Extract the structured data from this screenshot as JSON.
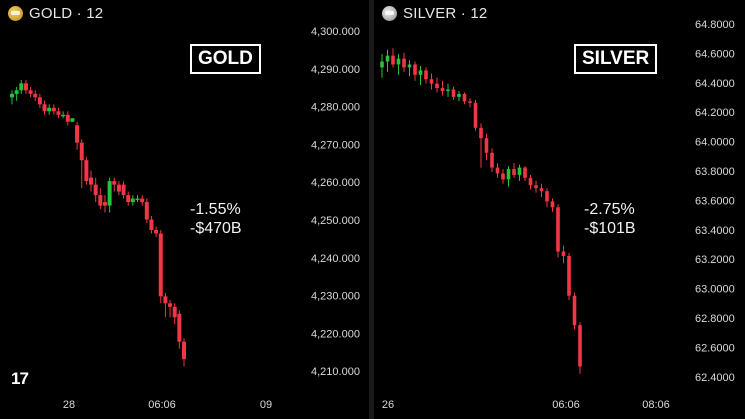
{
  "gold": {
    "header": "GOLD · 12",
    "icon": "gold-coin-icon",
    "box_label": "GOLD",
    "change_pct": "-1.55%",
    "change_cap": "-$470B"
  },
  "silver": {
    "header": "SILVER · 12",
    "icon": "silver-coin-icon",
    "box_label": "SILVER",
    "change_pct": "-2.75%",
    "change_cap": "-$101B"
  },
  "colors": {
    "up": "#26c23a",
    "down": "#f23645",
    "background": "#000000",
    "text": "#ffffff"
  },
  "chart_data": [
    {
      "type": "candlestick",
      "title": "GOLD · 12",
      "ylim": [
        4207,
        4307
      ],
      "y_ticks": [
        "4,300.000",
        "4,290.000",
        "4,280.000",
        "4,270.000",
        "4,260.000",
        "4,250.000",
        "4,240.000",
        "4,230.000",
        "4,220.000",
        "4,210.000"
      ],
      "x_ticks": [
        "28",
        "06:06",
        "09"
      ],
      "grid": false,
      "candles": [
        {
          "o": 4289,
          "h": 4291,
          "l": 4287,
          "c": 4290
        },
        {
          "o": 4290,
          "h": 4292,
          "l": 4288,
          "c": 4291
        },
        {
          "o": 4291,
          "h": 4294,
          "l": 4290,
          "c": 4293
        },
        {
          "o": 4293,
          "h": 4294,
          "l": 4290,
          "c": 4291
        },
        {
          "o": 4291,
          "h": 4292,
          "l": 4289,
          "c": 4290
        },
        {
          "o": 4290,
          "h": 4291,
          "l": 4288,
          "c": 4289
        },
        {
          "o": 4289,
          "h": 4290,
          "l": 4286,
          "c": 4287
        },
        {
          "o": 4287,
          "h": 4288,
          "l": 4284,
          "c": 4285
        },
        {
          "o": 4285,
          "h": 4287,
          "l": 4284,
          "c": 4286
        },
        {
          "o": 4286,
          "h": 4287,
          "l": 4284,
          "c": 4285
        },
        {
          "o": 4285,
          "h": 4286,
          "l": 4283,
          "c": 4284
        },
        {
          "o": 4284,
          "h": 4285,
          "l": 4283,
          "c": 4284
        },
        {
          "o": 4284,
          "h": 4285,
          "l": 4281,
          "c": 4282
        },
        {
          "o": 4282,
          "h": 4283,
          "l": 4282,
          "c": 4283
        },
        {
          "o": 4281,
          "h": 4282,
          "l": 4274,
          "c": 4276
        },
        {
          "o": 4276,
          "h": 4277,
          "l": 4263,
          "c": 4271
        },
        {
          "o": 4271,
          "h": 4272,
          "l": 4264,
          "c": 4265
        },
        {
          "o": 4266,
          "h": 4268,
          "l": 4262,
          "c": 4264
        },
        {
          "o": 4264,
          "h": 4266,
          "l": 4259,
          "c": 4261
        },
        {
          "o": 4261,
          "h": 4263,
          "l": 4257,
          "c": 4258
        },
        {
          "o": 4259,
          "h": 4261,
          "l": 4256,
          "c": 4258
        },
        {
          "o": 4258,
          "h": 4266,
          "l": 4256,
          "c": 4265
        },
        {
          "o": 4265,
          "h": 4266,
          "l": 4262,
          "c": 4264
        },
        {
          "o": 4264,
          "h": 4265,
          "l": 4261,
          "c": 4262
        },
        {
          "o": 4264,
          "h": 4265,
          "l": 4260,
          "c": 4261
        },
        {
          "o": 4261,
          "h": 4262,
          "l": 4258,
          "c": 4259
        },
        {
          "o": 4259,
          "h": 4261,
          "l": 4258,
          "c": 4260
        },
        {
          "o": 4260,
          "h": 4261,
          "l": 4259,
          "c": 4260
        },
        {
          "o": 4260,
          "h": 4261,
          "l": 4258,
          "c": 4259
        },
        {
          "o": 4259,
          "h": 4260,
          "l": 4253,
          "c": 4254
        },
        {
          "o": 4254,
          "h": 4255,
          "l": 4250,
          "c": 4251
        },
        {
          "o": 4251,
          "h": 4252,
          "l": 4249,
          "c": 4250
        },
        {
          "o": 4250,
          "h": 4251,
          "l": 4230,
          "c": 4232
        },
        {
          "o": 4232,
          "h": 4233,
          "l": 4226,
          "c": 4230
        },
        {
          "o": 4230,
          "h": 4231,
          "l": 4226,
          "c": 4229
        },
        {
          "o": 4229,
          "h": 4230,
          "l": 4224,
          "c": 4226
        },
        {
          "o": 4227,
          "h": 4228,
          "l": 4217,
          "c": 4219
        },
        {
          "o": 4219,
          "h": 4220,
          "l": 4212,
          "c": 4214
        }
      ]
    },
    {
      "type": "candlestick",
      "title": "SILVER · 12",
      "ylim": [
        62.36,
        64.92
      ],
      "y_ticks": [
        "64.8000",
        "64.6000",
        "64.4000",
        "64.2000",
        "64.0000",
        "63.8000",
        "63.6000",
        "63.4000",
        "63.2000",
        "63.0000",
        "62.8000",
        "62.6000",
        "62.4000"
      ],
      "x_ticks": [
        "26",
        "06:06",
        "08:06"
      ],
      "grid": false,
      "candles": [
        {
          "o": 64.53,
          "h": 64.62,
          "l": 64.46,
          "c": 64.57
        },
        {
          "o": 64.57,
          "h": 64.65,
          "l": 64.5,
          "c": 64.61
        },
        {
          "o": 64.61,
          "h": 64.66,
          "l": 64.53,
          "c": 64.55
        },
        {
          "o": 64.55,
          "h": 64.62,
          "l": 64.48,
          "c": 64.59
        },
        {
          "o": 64.59,
          "h": 64.63,
          "l": 64.5,
          "c": 64.53
        },
        {
          "o": 64.53,
          "h": 64.58,
          "l": 64.47,
          "c": 64.55
        },
        {
          "o": 64.55,
          "h": 64.57,
          "l": 64.44,
          "c": 64.48
        },
        {
          "o": 64.48,
          "h": 64.54,
          "l": 64.41,
          "c": 64.51
        },
        {
          "o": 64.51,
          "h": 64.53,
          "l": 64.42,
          "c": 64.45
        },
        {
          "o": 64.45,
          "h": 64.49,
          "l": 64.38,
          "c": 64.42
        },
        {
          "o": 64.42,
          "h": 64.46,
          "l": 64.36,
          "c": 64.39
        },
        {
          "o": 64.39,
          "h": 64.44,
          "l": 64.34,
          "c": 64.37
        },
        {
          "o": 64.37,
          "h": 64.42,
          "l": 64.33,
          "c": 64.38
        },
        {
          "o": 64.38,
          "h": 64.4,
          "l": 64.31,
          "c": 64.33
        },
        {
          "o": 64.33,
          "h": 64.37,
          "l": 64.3,
          "c": 64.35
        },
        {
          "o": 64.35,
          "h": 64.36,
          "l": 64.28,
          "c": 64.3
        },
        {
          "o": 64.3,
          "h": 64.32,
          "l": 64.26,
          "c": 64.29
        },
        {
          "o": 64.29,
          "h": 64.31,
          "l": 64.1,
          "c": 64.12
        },
        {
          "o": 64.12,
          "h": 64.15,
          "l": 63.85,
          "c": 64.05
        },
        {
          "o": 64.05,
          "h": 64.08,
          "l": 63.9,
          "c": 63.95
        },
        {
          "o": 63.95,
          "h": 63.98,
          "l": 63.82,
          "c": 63.85
        },
        {
          "o": 63.85,
          "h": 63.88,
          "l": 63.78,
          "c": 63.81
        },
        {
          "o": 63.81,
          "h": 63.84,
          "l": 63.74,
          "c": 63.77
        },
        {
          "o": 63.77,
          "h": 63.86,
          "l": 63.72,
          "c": 63.84
        },
        {
          "o": 63.84,
          "h": 63.88,
          "l": 63.78,
          "c": 63.8
        },
        {
          "o": 63.8,
          "h": 63.87,
          "l": 63.76,
          "c": 63.85
        },
        {
          "o": 63.85,
          "h": 63.86,
          "l": 63.76,
          "c": 63.78
        },
        {
          "o": 63.78,
          "h": 63.8,
          "l": 63.7,
          "c": 63.73
        },
        {
          "o": 63.73,
          "h": 63.76,
          "l": 63.68,
          "c": 63.71
        },
        {
          "o": 63.71,
          "h": 63.74,
          "l": 63.65,
          "c": 63.69
        },
        {
          "o": 63.69,
          "h": 63.71,
          "l": 63.58,
          "c": 63.62
        },
        {
          "o": 63.62,
          "h": 63.64,
          "l": 63.55,
          "c": 63.58
        },
        {
          "o": 63.58,
          "h": 63.6,
          "l": 63.24,
          "c": 63.28
        },
        {
          "o": 63.28,
          "h": 63.32,
          "l": 63.2,
          "c": 63.25
        },
        {
          "o": 63.25,
          "h": 63.27,
          "l": 62.95,
          "c": 62.98
        },
        {
          "o": 62.98,
          "h": 63.0,
          "l": 62.75,
          "c": 62.78
        },
        {
          "o": 62.78,
          "h": 62.8,
          "l": 62.45,
          "c": 62.5
        }
      ]
    }
  ]
}
